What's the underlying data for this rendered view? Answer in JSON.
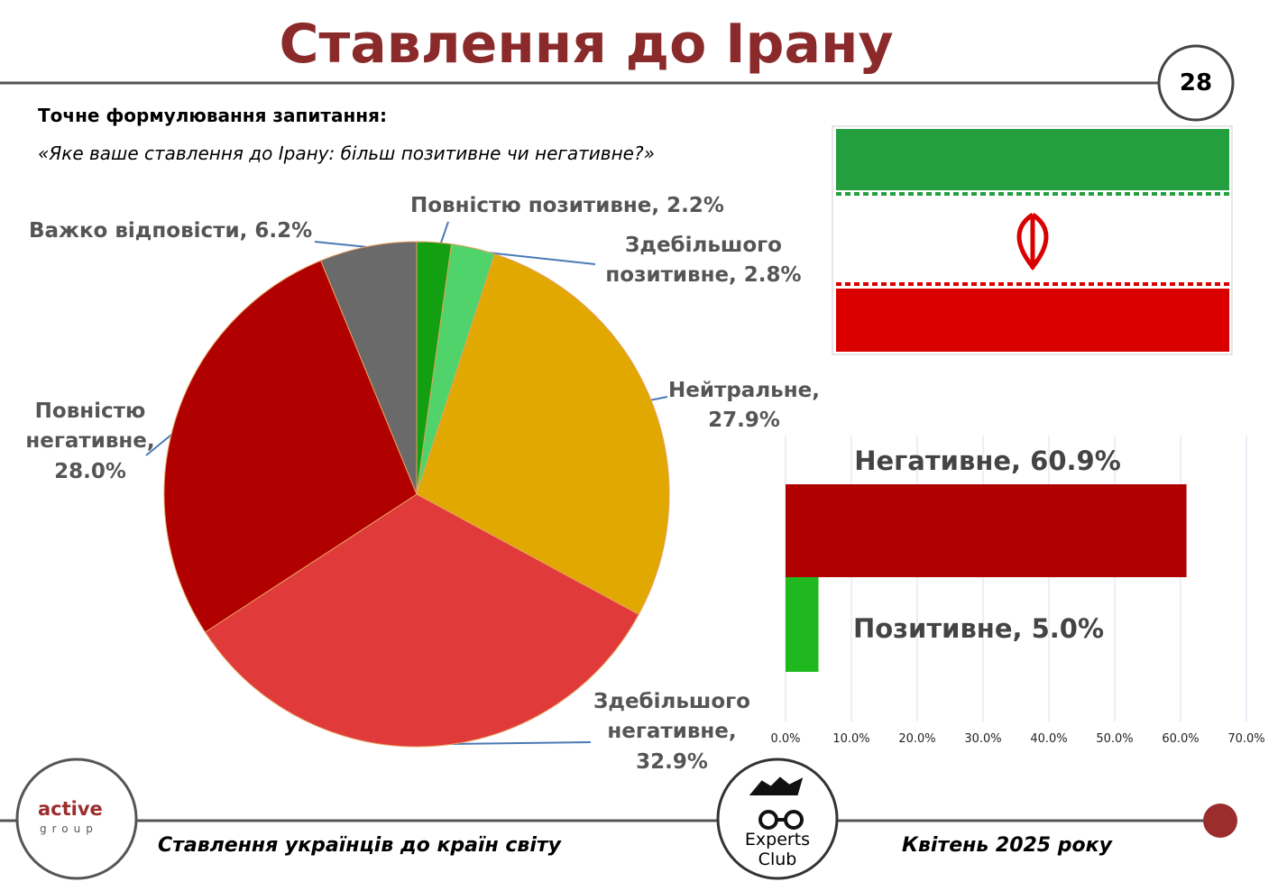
{
  "header": {
    "title": "Ставлення до Ірану",
    "page_number": "28",
    "question_label": "Точне формулювання запитання:",
    "question": "«Яке ваше ставлення до Ірану: більш позитивне чи негативне?»"
  },
  "chart_data": [
    {
      "type": "pie",
      "labels": [
        "Повністю позитивне, 2.2%",
        "Здебільшого позитивне, 2.8%",
        "Нейтральне, 27.9%",
        "Здебільшого негативне, 32.9%",
        "Повністю негативне, 28.0%",
        "Важко відповісти, 6.2%"
      ],
      "values": [
        2.2,
        2.8,
        27.9,
        32.9,
        28.0,
        6.2
      ],
      "colors": [
        "#12a012",
        "#4fd36a",
        "#e0a800",
        "#e03a3a",
        "#b00000",
        "#6a6a6a"
      ]
    },
    {
      "type": "hbar",
      "labels": [
        "Негативне, 60.9%",
        "Позитивне, 5.0%"
      ],
      "values": [
        60.9,
        5.0
      ],
      "colors": [
        "#b00000",
        "#1fb81f"
      ],
      "xlim": [
        0,
        70
      ],
      "xticks": [
        {
          "value": 0,
          "label": "0.0%"
        },
        {
          "value": 10,
          "label": "10.0%"
        },
        {
          "value": 20,
          "label": "20.0%"
        },
        {
          "value": 30,
          "label": "30.0%"
        },
        {
          "value": 40,
          "label": "40.0%"
        },
        {
          "value": 50,
          "label": "50.0%"
        },
        {
          "value": 60,
          "label": "60.0%"
        },
        {
          "value": 70,
          "label": "70.0%"
        }
      ],
      "grid": true
    }
  ],
  "footer": {
    "left_logo": [
      "active",
      "group"
    ],
    "center_logo": [
      "Experts",
      "Club"
    ],
    "subject": "Ставлення українців до країн світу",
    "date": "Квітень 2025 року"
  }
}
